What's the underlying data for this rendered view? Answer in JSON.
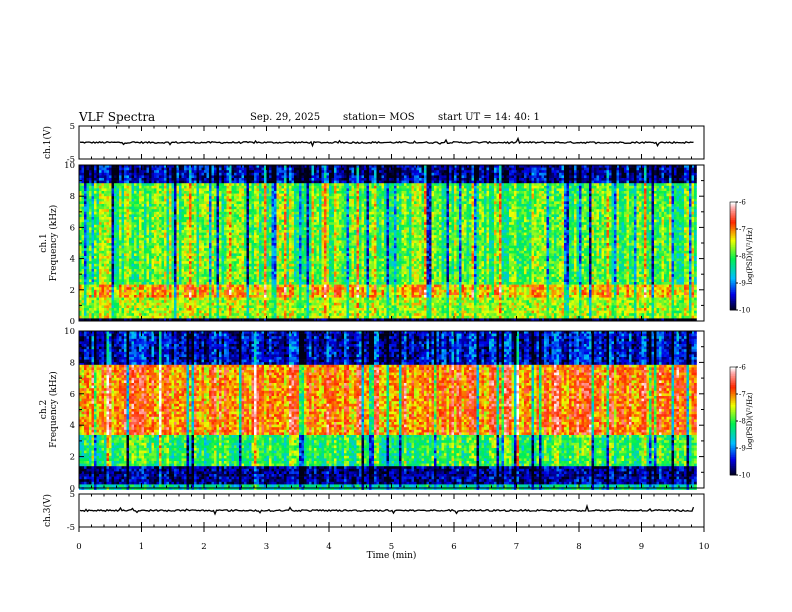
{
  "header": {
    "title": "VLF Spectra",
    "date": "Sep. 29, 2025",
    "station": "station= MOS",
    "start": "start  UT =   14: 40: 1"
  },
  "chart_data": {
    "type": "heatmap",
    "x_axis": {
      "label": "Time  (min)",
      "range": [
        0,
        10
      ],
      "ticks": [
        "0",
        "1",
        "2",
        "3",
        "4",
        "5",
        "6",
        "7",
        "8",
        "9",
        "10"
      ]
    },
    "panels": [
      {
        "id": "ch1-waveform",
        "type": "line",
        "ylabel": "ch.1(V)",
        "ylim": [
          -5,
          5
        ],
        "yticks": [
          "5",
          "-5"
        ],
        "level": 0,
        "x_end": 9.85
      },
      {
        "id": "ch1-spectrogram",
        "type": "heatmap",
        "ylabel": "ch.1\nFrequency (kHz)",
        "ylabel_lines": [
          "ch.1",
          "Frequency (kHz)"
        ],
        "ylim": [
          0,
          10
        ],
        "yticks": [
          "0",
          "2",
          "4",
          "6",
          "8",
          "10"
        ],
        "x_end": 9.85,
        "colorbar": {
          "label": "log(PSD)(V²/Hz)",
          "range": [
            -10,
            -6
          ],
          "ticks": [
            "-6",
            "-7",
            "-8",
            "-9",
            "-10"
          ]
        },
        "description_levels": {
          "below_0.3kHz": -10,
          "0.3_to_1.5kHz": -7.6,
          "1.5_to_2.5kHz": -7.2,
          "2.5_to_9kHz": -7.9,
          "above_9kHz": -9.6
        }
      },
      {
        "id": "ch2-spectrogram",
        "type": "heatmap",
        "ylabel": "ch.2\nFrequency (kHz)",
        "ylabel_lines": [
          "ch.2",
          "Frequency (kHz)"
        ],
        "ylim": [
          0,
          10
        ],
        "yticks": [
          "0",
          "2",
          "4",
          "6",
          "8",
          "10"
        ],
        "x_end": 9.85,
        "colorbar": {
          "label": "log(PSD)(V²/Hz)",
          "range": [
            -10,
            -6
          ],
          "ticks": [
            "-6",
            "-7",
            "-8",
            "-9",
            "-10"
          ]
        },
        "description_levels": {
          "below_0.3kHz": -8.4,
          "0.3_to_1.5kHz": -9.6,
          "1.5_to_3.5kHz": -8.0,
          "3.5_to_8kHz": -6.9,
          "above_9kHz": -9.4
        }
      },
      {
        "id": "ch3-waveform",
        "type": "line",
        "ylabel": "ch.3(V)",
        "ylim": [
          -5,
          5
        ],
        "yticks": [
          "5",
          "-5"
        ],
        "level": 0,
        "x_end": 9.85
      }
    ],
    "colormap": [
      "#000000",
      "#0000ff",
      "#00c8ff",
      "#00ff40",
      "#ffff00",
      "#ff0000",
      "#ffffff"
    ]
  }
}
